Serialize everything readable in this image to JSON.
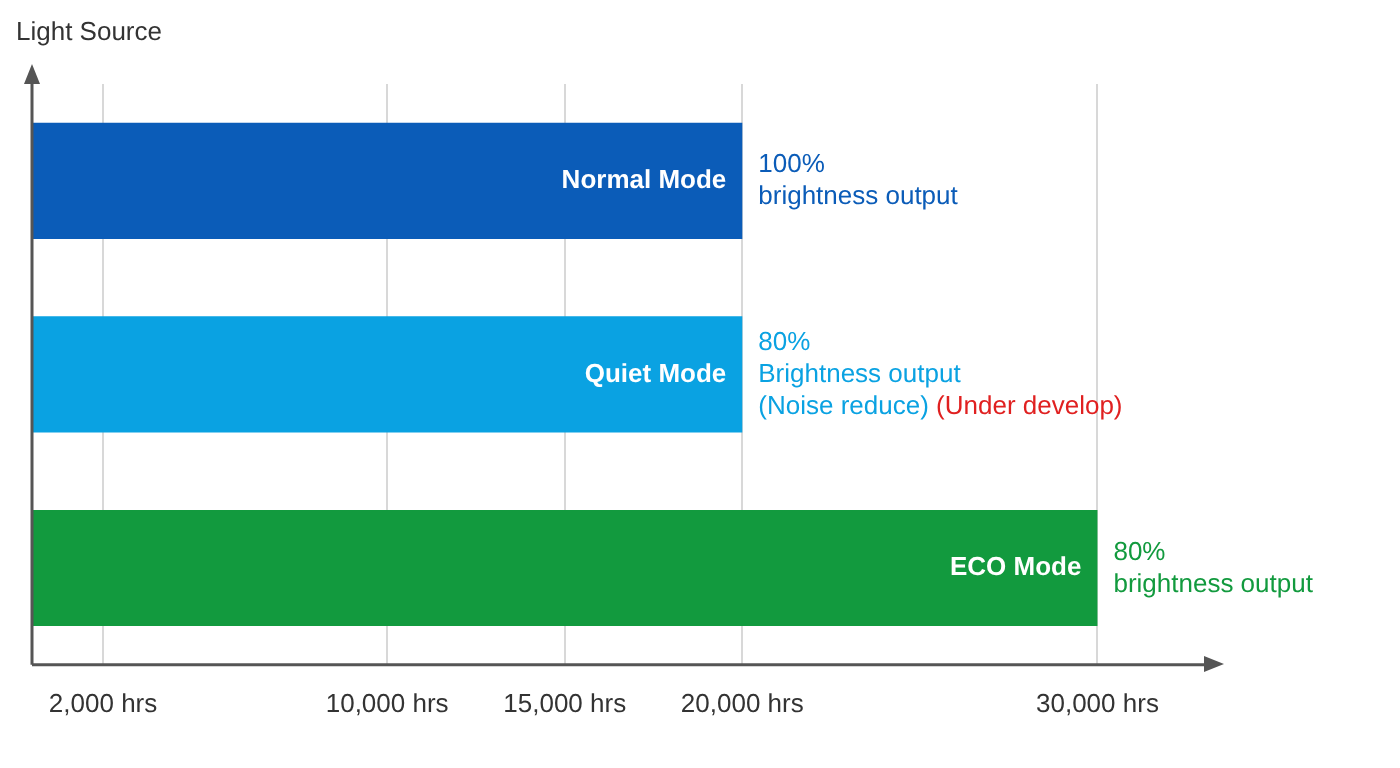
{
  "chart_data": {
    "type": "bar",
    "orientation": "horizontal",
    "ylabel": "Light Source",
    "categories": [
      "Normal Mode",
      "Quiet Mode",
      "ECO Mode"
    ],
    "values": [
      20000,
      20000,
      30000
    ],
    "colors": [
      "#0b5cb8",
      "#0aa2e2",
      "#129a3e"
    ],
    "xlim": [
      0,
      33000
    ],
    "xticks": [
      {
        "value": 2000,
        "label": "2,000 hrs"
      },
      {
        "value": 10000,
        "label": "10,000 hrs"
      },
      {
        "value": 15000,
        "label": "15,000 hrs"
      },
      {
        "value": 20000,
        "label": "20,000 hrs"
      },
      {
        "value": 30000,
        "label": "30,000 hrs"
      }
    ],
    "grid": "x",
    "legend": false,
    "annotations": [
      "100%\nbrightness output",
      "80%\nBrightness output\n(Noise reduce)",
      "(Under develop)",
      "80%\nbrightness output"
    ]
  }
}
